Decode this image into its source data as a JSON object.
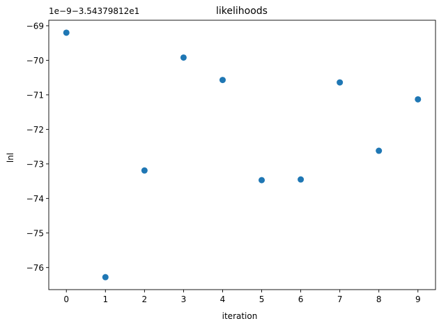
{
  "chart_data": {
    "type": "scatter",
    "title": "likelihoods",
    "xlabel": "iteration",
    "ylabel": "lnl",
    "y_offset_text": "1e−9−3.54379812e1",
    "x": [
      0,
      1,
      2,
      3,
      4,
      5,
      6,
      7,
      8,
      9
    ],
    "y": [
      -69.2,
      -76.28,
      -73.19,
      -69.92,
      -70.57,
      -73.47,
      -73.45,
      -70.64,
      -72.62,
      -71.13
    ],
    "xlim": [
      -0.45,
      9.45
    ],
    "ylim": [
      -76.64,
      -68.84
    ],
    "x_ticks": [
      0,
      1,
      2,
      3,
      4,
      5,
      6,
      7,
      8,
      9
    ],
    "x_tick_labels": [
      "0",
      "1",
      "2",
      "3",
      "4",
      "5",
      "6",
      "7",
      "8",
      "9"
    ],
    "y_ticks": [
      -69,
      -70,
      -71,
      -72,
      -73,
      -74,
      -75,
      -76
    ],
    "y_tick_labels": [
      "−69",
      "−70",
      "−71",
      "−72",
      "−73",
      "−74",
      "−75",
      "−76"
    ],
    "grid": false,
    "marker_color": "#1f77b4"
  }
}
